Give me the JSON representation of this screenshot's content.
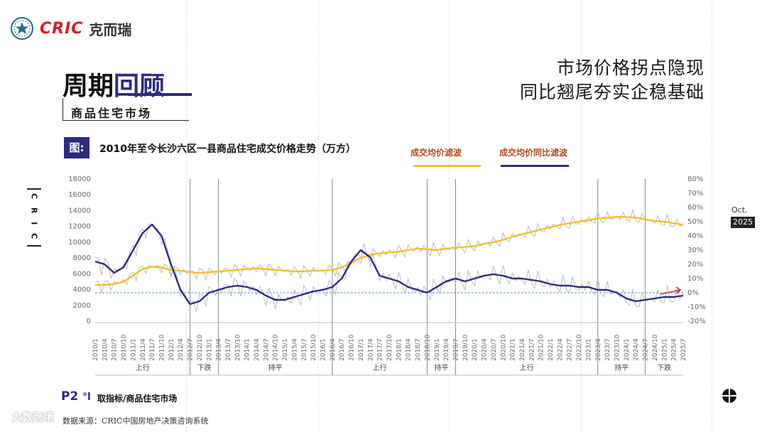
{
  "brand": {
    "cric": "CRIC",
    "cn": "克而瑞"
  },
  "header": {
    "cycle_a": "周期",
    "cycle_b": "回顾",
    "subtitle": "商品住宅市场"
  },
  "headline": [
    "市场价格拐点隐现",
    "同比翘尾夯实企稳基础"
  ],
  "figure": {
    "tag": "图:",
    "title": "2010年至今长沙六区一县商品住宅成交价格走势（万方）"
  },
  "legend": [
    "成交均价滤波",
    "成交均价同比滤波"
  ],
  "side_label": "C R I C",
  "date_badge": {
    "month": "Oct.",
    "year": "2025"
  },
  "footer": {
    "page": "P2",
    "icon": "°l",
    "indicator": "取指标/商品住宅市场",
    "source": "数据来源：CRIC中国房地产决策咨询系统",
    "watermark": "大数跨境"
  },
  "colors": {
    "price": "#f0c030",
    "yoy": "#2c2c7e",
    "raw": "#bdbdbd",
    "zero_line": "#3aa0e0",
    "brand_red": "#d42027"
  },
  "chart_data": {
    "type": "line",
    "x_ticks": [
      "2010/1",
      "2010/4",
      "2010/7",
      "2010/10",
      "2011/1",
      "2011/4",
      "2011/7",
      "2011/10",
      "2012/1",
      "2012/4",
      "2012/7",
      "2012/10",
      "2013/1",
      "2013/4",
      "2013/7",
      "2013/10",
      "2014/1",
      "2014/4",
      "2014/7",
      "2014/10",
      "2015/1",
      "2015/4",
      "2015/7",
      "2015/10",
      "2016/1",
      "2016/4",
      "2016/7",
      "2016/10",
      "2017/1",
      "2017/4",
      "2017/7",
      "2017/10",
      "2018/1",
      "2018/4",
      "2018/7",
      "2018/10",
      "2019/1",
      "2019/4",
      "2019/7",
      "2019/10",
      "2020/1",
      "2020/4",
      "2020/7",
      "2020/10",
      "2021/1",
      "2021/4",
      "2021/7",
      "2021/10",
      "2022/1",
      "2022/4",
      "2022/7",
      "2022/10",
      "2023/1",
      "2023/4",
      "2023/7",
      "2023/10",
      "2024/1",
      "2024/4",
      "2024/7",
      "2024/10",
      "2025/1",
      "2025/4",
      "2025/7"
    ],
    "y_left": {
      "min": 0,
      "max": 18000,
      "ticks": [
        "0",
        "2000",
        "4000",
        "6000",
        "8000",
        "10000",
        "12000",
        "14000",
        "16000",
        "18000"
      ]
    },
    "y_right": {
      "min": -20,
      "max": 80,
      "ticks": [
        "-20%",
        "-10%",
        "0%",
        "10%",
        "20%",
        "30%",
        "40%",
        "50%",
        "60%",
        "70%",
        "80%"
      ]
    },
    "phases": [
      {
        "label": "上行",
        "from": "2010/1",
        "to": "2012/7"
      },
      {
        "label": "下跌",
        "from": "2012/7",
        "to": "2013/4"
      },
      {
        "label": "持平",
        "from": "2013/4",
        "to": "2016/4"
      },
      {
        "label": "上行",
        "from": "2016/4",
        "to": "2018/10"
      },
      {
        "label": "持平",
        "from": "2018/10",
        "to": "2019/7"
      },
      {
        "label": "上行",
        "from": "2019/7",
        "to": "2023/4"
      },
      {
        "label": "持平",
        "from": "2023/4",
        "to": "2024/7"
      },
      {
        "label": "下跌",
        "from": "2024/7",
        "to": "2025/7"
      }
    ],
    "series": [
      {
        "name": "成交均价滤波",
        "axis": "left",
        "values": [
          4600,
          4600,
          4700,
          5000,
          5800,
          6600,
          6900,
          6800,
          6500,
          6400,
          6200,
          6100,
          6200,
          6300,
          6400,
          6500,
          6600,
          6700,
          6600,
          6500,
          6400,
          6300,
          6300,
          6400,
          6400,
          6500,
          6800,
          7400,
          8000,
          8400,
          8600,
          8700,
          8800,
          9000,
          9200,
          9100,
          9000,
          9200,
          9300,
          9400,
          9500,
          9800,
          10000,
          10300,
          10700,
          11000,
          11300,
          11600,
          11900,
          12200,
          12400,
          12600,
          12800,
          13000,
          13100,
          13200,
          13200,
          13100,
          12900,
          12700,
          12600,
          12400,
          12200
        ]
      },
      {
        "name": "成交均价同比滤波",
        "axis": "right",
        "values": [
          22,
          20,
          14,
          18,
          30,
          42,
          48,
          40,
          20,
          2,
          -8,
          -6,
          0,
          2,
          4,
          5,
          4,
          2,
          -2,
          -5,
          -5,
          -3,
          -1,
          1,
          2,
          4,
          10,
          22,
          30,
          25,
          12,
          10,
          8,
          4,
          2,
          0,
          4,
          8,
          10,
          8,
          10,
          12,
          13,
          12,
          10,
          10,
          9,
          8,
          6,
          5,
          5,
          4,
          4,
          2,
          2,
          0,
          -4,
          -6,
          -5,
          -4,
          -3,
          -3,
          -2
        ]
      }
    ]
  }
}
